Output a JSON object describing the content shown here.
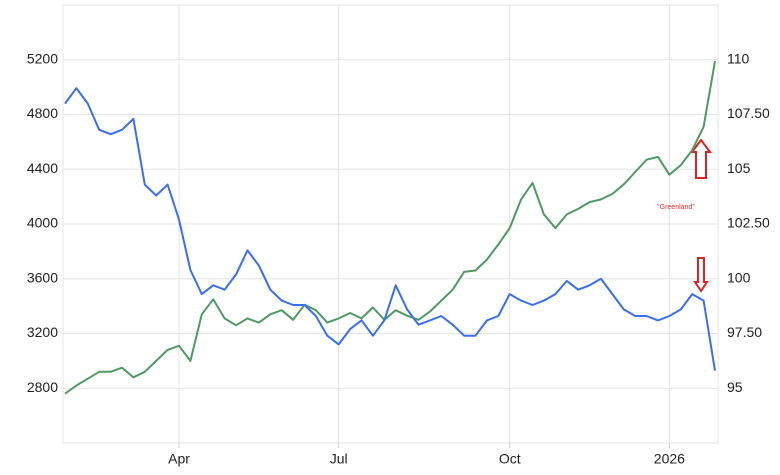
{
  "chart_data": {
    "type": "line",
    "categories": [
      null,
      null,
      null,
      null,
      null,
      null,
      null,
      null,
      null,
      null,
      "Apr",
      null,
      null,
      null,
      null,
      null,
      null,
      null,
      null,
      null,
      null,
      null,
      null,
      null,
      "Jul",
      null,
      null,
      null,
      null,
      null,
      null,
      null,
      null,
      null,
      null,
      null,
      null,
      null,
      null,
      "Oct",
      null,
      null,
      null,
      null,
      null,
      null,
      null,
      null,
      null,
      null,
      null,
      null,
      null,
      "2026",
      null,
      null,
      null,
      null
    ],
    "series": [
      {
        "color": "#4f9a63",
        "axis": "y",
        "values": [
          2760,
          2820,
          2870,
          2920,
          2920,
          2950,
          2880,
          2920,
          3000,
          3080,
          3110,
          3000,
          3340,
          3450,
          3310,
          3260,
          3310,
          3280,
          3340,
          3370,
          3300,
          3410,
          3370,
          3280,
          3310,
          3350,
          3310,
          3390,
          3300,
          3370,
          3330,
          3300,
          3360,
          3440,
          3520,
          3650,
          3660,
          3740,
          3850,
          3970,
          4180,
          4300,
          4070,
          3970,
          4070,
          4110,
          4160,
          4180,
          4220,
          4290,
          4380,
          4470,
          4490,
          4360,
          4430,
          4540,
          4710,
          5190
        ]
      },
      {
        "color": "#3a6ef0",
        "axis": "y2",
        "values": [
          108.0,
          108.7,
          108.0,
          106.8,
          106.6,
          106.8,
          107.3,
          104.3,
          103.8,
          104.3,
          102.7,
          100.4,
          99.3,
          99.7,
          99.5,
          100.2,
          101.3,
          100.6,
          99.5,
          99.0,
          98.8,
          98.8,
          98.3,
          97.4,
          97.0,
          97.7,
          98.1,
          97.4,
          98.1,
          99.7,
          98.6,
          97.9,
          98.1,
          98.3,
          97.9,
          97.4,
          97.4,
          98.1,
          98.3,
          99.3,
          99.0,
          98.8,
          99.0,
          99.3,
          99.9,
          99.5,
          99.7,
          100.0,
          99.3,
          98.6,
          98.3,
          98.3,
          98.1,
          98.3,
          98.6,
          99.3,
          99.0,
          95.8
        ]
      }
    ],
    "ylim": [
      2400,
      5600
    ],
    "yticks": [
      2800,
      3200,
      3600,
      4000,
      4400,
      4800,
      5200
    ],
    "y2lim": [
      92.5,
      112.5
    ],
    "y2ticks": [
      95,
      {
        "value": 97.5,
        "label": "97.50"
      },
      100,
      {
        "value": 102.5,
        "label": "102.50"
      },
      105,
      {
        "value": 107.5,
        "label": "107.50"
      },
      110
    ],
    "annotation": "\"Greenland\"",
    "grid": true
  }
}
